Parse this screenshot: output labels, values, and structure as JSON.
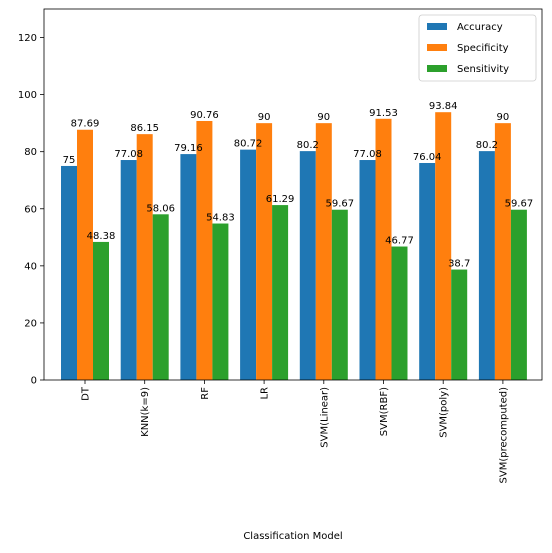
{
  "chart_data": {
    "type": "bar",
    "title": "",
    "xlabel": "Classification Model",
    "ylabel": "",
    "ylim": [
      0,
      130
    ],
    "yticks": [
      0,
      20,
      40,
      60,
      80,
      100,
      120
    ],
    "grid": false,
    "legend_position": "top-right",
    "categories": [
      "DT",
      "KNN(k=9)",
      "RF",
      "LR",
      "SVM(Linear)",
      "SVM(RBF)",
      "SVM(poly)",
      "SVM(precomputed)"
    ],
    "series": [
      {
        "name": "Accuracy",
        "color": "#1f77b4",
        "values": [
          75,
          77.08,
          79.16,
          80.72,
          80.2,
          77.08,
          76.04,
          80.2
        ]
      },
      {
        "name": "Specificity",
        "color": "#ff7f0e",
        "values": [
          87.69,
          86.15,
          90.76,
          90,
          90,
          91.53,
          93.84,
          90
        ]
      },
      {
        "name": "Sensitivity",
        "color": "#2ca02c",
        "values": [
          48.38,
          58.06,
          54.83,
          61.29,
          59.67,
          46.77,
          38.7,
          59.67
        ]
      }
    ]
  }
}
